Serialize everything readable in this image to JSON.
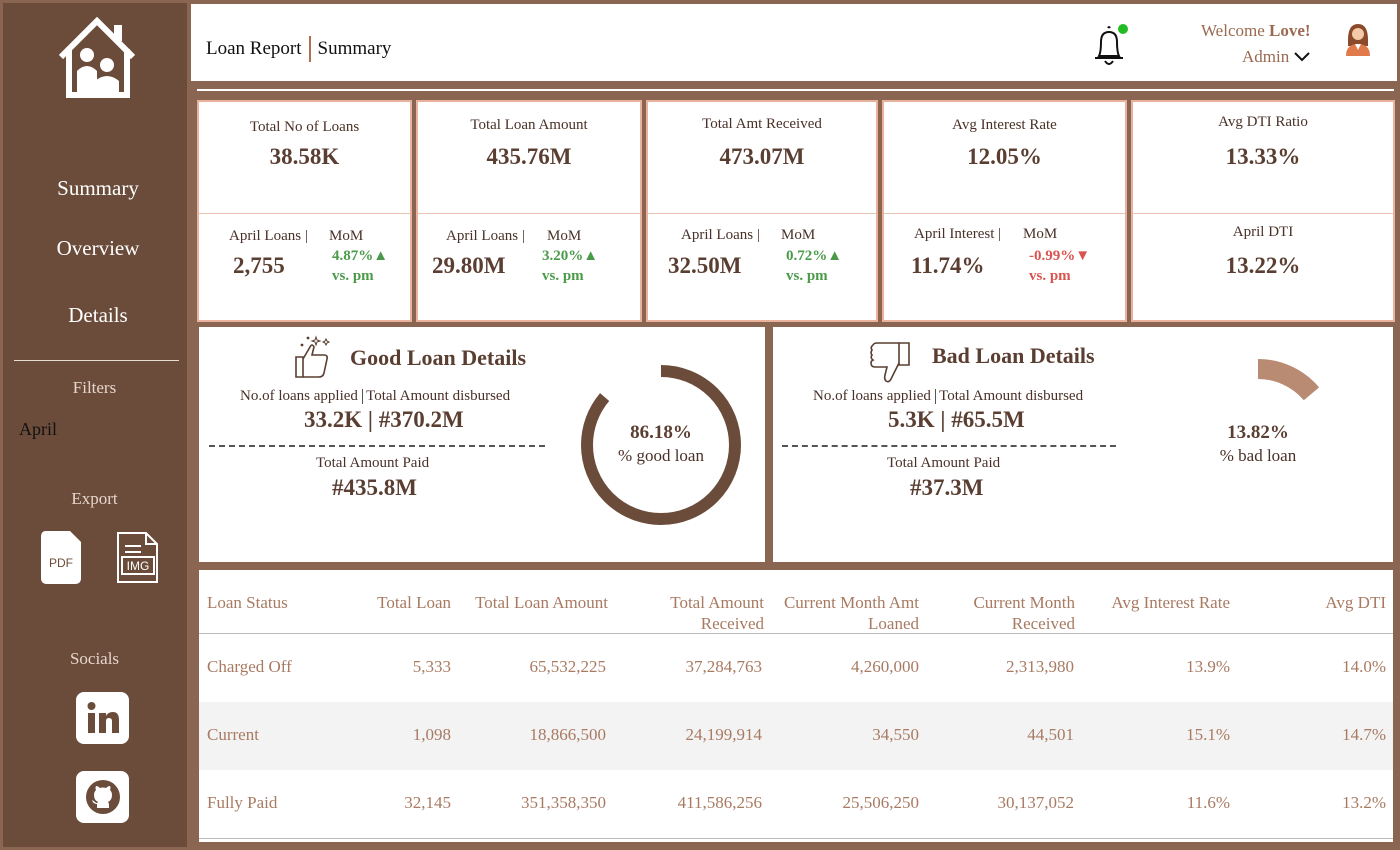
{
  "header": {
    "title": "Loan Report",
    "subtitle": "Summary",
    "welcome_prefix": "Welcome ",
    "welcome_name": "Love!",
    "role": "Admin"
  },
  "sidebar": {
    "nav": [
      "Summary",
      "Overview",
      "Details"
    ],
    "filters_label": "Filters",
    "filter_value": "April",
    "export_label": "Export",
    "export_pdf": "PDF",
    "export_img": "IMG",
    "socials_label": "Socials"
  },
  "kpis": [
    {
      "label": "Total No of Loans",
      "value": "38.58K",
      "sub_label": "April Loans |",
      "sub_value": "2,755",
      "mom_label": "MoM",
      "mom": "4.87%",
      "mom_arrow": "▲",
      "vs": "vs. pm"
    },
    {
      "label": "Total Loan Amount",
      "value": "435.76M",
      "sub_label": "April Loans |",
      "sub_value": "29.80M",
      "mom_label": "MoM",
      "mom": "3.20%",
      "mom_arrow": "▲",
      "vs": "vs. pm"
    },
    {
      "label": "Total Amt Received",
      "value": "473.07M",
      "sub_label": "April Loans |",
      "sub_value": "32.50M",
      "mom_label": "MoM",
      "mom": "0.72%",
      "mom_arrow": "▲",
      "vs": "vs. pm"
    },
    {
      "label": "Avg Interest Rate",
      "value": "12.05%",
      "sub_label": "April Interest |",
      "sub_value": "11.74%",
      "mom_label": "MoM",
      "mom": "-0.99%",
      "mom_arrow": "▼",
      "vs": "vs. pm"
    },
    {
      "label": "Avg DTI Ratio",
      "value": "13.33%",
      "sub_label": "April DTI",
      "sub_value": "13.22%"
    }
  ],
  "colors": {
    "up": "#4a9a4a",
    "down": "#d9534f",
    "brand": "#6b4c3b",
    "accent": "#b98b73"
  },
  "good_loan": {
    "title": "Good Loan Details",
    "applied_label": "No.of loans applied",
    "disbursed_label": "Total Amount disbursed",
    "values": "33.2K | #370.2M",
    "paid_label": "Total Amount Paid",
    "paid_value": "#435.8M",
    "pct": "86.18%",
    "pct_label": "% good loan",
    "ratio": 0.8618
  },
  "bad_loan": {
    "title": "Bad Loan Details",
    "applied_label": "No.of loans applied",
    "disbursed_label": "Total Amount disbursed",
    "values": "5.3K | #65.5M",
    "paid_label": "Total Amount Paid",
    "paid_value": "#37.3M",
    "pct": "13.82%",
    "pct_label": "% bad loan",
    "ratio": 0.1382
  },
  "table": {
    "headers": [
      {
        "l1": "",
        "l2": "Loan Status"
      },
      {
        "l1": "",
        "l2": "Total Loan"
      },
      {
        "l1": "",
        "l2": "Total Loan Amount"
      },
      {
        "l1": "Total Amount",
        "l2": "Received"
      },
      {
        "l1": "Current Month Amt",
        "l2": "Loaned"
      },
      {
        "l1": "Current Month",
        "l2": "Received"
      },
      {
        "l1": "",
        "l2": "Avg Interest Rate"
      },
      {
        "l1": "",
        "l2": "Avg DTI"
      }
    ],
    "rows": [
      [
        "Charged Off",
        "5,333",
        "65,532,225",
        "37,284,763",
        "4,260,000",
        "2,313,980",
        "13.9%",
        "14.0%"
      ],
      [
        "Current",
        "1,098",
        "18,866,500",
        "24,199,914",
        "34,550",
        "44,501",
        "15.1%",
        "14.7%"
      ],
      [
        "Fully Paid",
        "32,145",
        "351,358,350",
        "411,586,256",
        "25,506,250",
        "30,137,052",
        "11.6%",
        "13.2%"
      ]
    ]
  }
}
